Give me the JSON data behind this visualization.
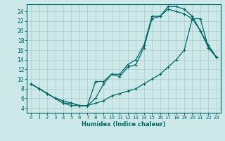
{
  "title": "",
  "xlabel": "Humidex (Indice chaleur)",
  "ylabel": "",
  "bg_color": "#cce8e8",
  "line_color": "#006666",
  "xlim": [
    -0.5,
    23.5
  ],
  "ylim": [
    3.0,
    25.5
  ],
  "xticks": [
    0,
    1,
    2,
    3,
    4,
    5,
    6,
    7,
    8,
    9,
    10,
    11,
    12,
    13,
    14,
    15,
    16,
    17,
    18,
    19,
    20,
    21,
    22,
    23
  ],
  "yticks": [
    4,
    6,
    8,
    10,
    12,
    14,
    16,
    18,
    20,
    22,
    24
  ],
  "grid_color": "#b0d0d0",
  "curve1_x": [
    0,
    1,
    2,
    3,
    4,
    5,
    6,
    7,
    8,
    9,
    10,
    11,
    12,
    13,
    14,
    15,
    16,
    17,
    18,
    19,
    20,
    21,
    22,
    23
  ],
  "curve1_y": [
    9,
    8,
    7,
    6,
    5,
    5,
    4.5,
    4.5,
    9.5,
    9.5,
    11,
    11,
    13,
    14,
    17,
    23,
    23,
    25,
    25,
    24.5,
    23,
    20,
    17,
    14.5
  ],
  "curve2_x": [
    0,
    1,
    2,
    3,
    4,
    5,
    6,
    7,
    8,
    9,
    10,
    11,
    12,
    13,
    14,
    15,
    16,
    17,
    18,
    19,
    20,
    21,
    22,
    23
  ],
  "curve2_y": [
    9,
    8,
    7,
    6,
    5,
    4.5,
    4.5,
    4.5,
    5,
    5.5,
    6.5,
    7,
    7.5,
    8,
    9,
    10,
    11,
    12.5,
    14,
    16,
    22.5,
    22.5,
    16.5,
    14.5
  ],
  "curve3_x": [
    0,
    1,
    2,
    3,
    4,
    5,
    6,
    7,
    8,
    9,
    10,
    11,
    12,
    13,
    14,
    15,
    16,
    17,
    18,
    19,
    20,
    21,
    22,
    23
  ],
  "curve3_y": [
    9,
    8,
    7,
    6,
    5.5,
    5,
    4.5,
    4.5,
    6,
    9,
    11,
    10.5,
    12.5,
    13,
    16.5,
    22.5,
    23,
    24.5,
    24,
    23.5,
    22.5,
    20,
    16.5,
    14.5
  ]
}
